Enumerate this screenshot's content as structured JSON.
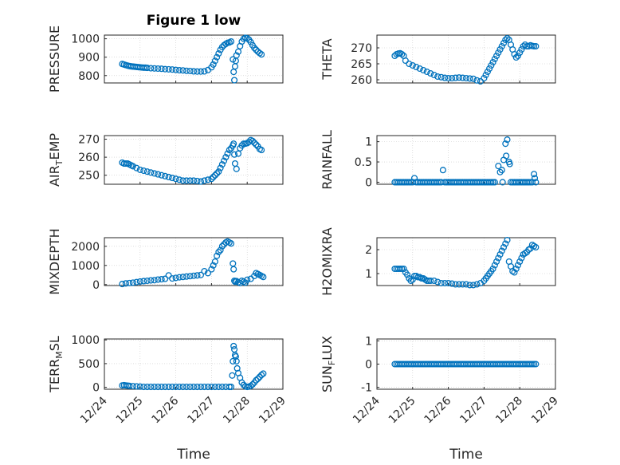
{
  "figure_title": "Figure 1 low",
  "xlabel": "Time",
  "xticks": [
    "12/24",
    "12/25",
    "12/26",
    "12/27",
    "12/28",
    "12/29"
  ],
  "marker_color": "#0072bd",
  "chart_data": [
    {
      "type": "scatter",
      "id": "pressure",
      "ylabel": "PRESSURE",
      "ylabel_sub": "",
      "title": "Figure 1 low",
      "xlim": [
        0,
        5
      ],
      "ylim": [
        760,
        1020
      ],
      "yticks": [
        800,
        900,
        1000
      ],
      "ytick_labels": [
        "800",
        "900",
        "1000"
      ],
      "x": [
        0.5,
        0.55,
        0.6,
        0.65,
        0.7,
        0.75,
        0.8,
        0.85,
        0.9,
        0.95,
        1.0,
        1.05,
        1.1,
        1.15,
        1.2,
        1.3,
        1.4,
        1.5,
        1.6,
        1.7,
        1.8,
        1.9,
        2.0,
        2.1,
        2.2,
        2.3,
        2.4,
        2.5,
        2.6,
        2.7,
        2.8,
        2.9,
        3.0,
        3.05,
        3.1,
        3.15,
        3.2,
        3.25,
        3.3,
        3.35,
        3.4,
        3.45,
        3.5,
        3.55,
        3.6,
        3.62,
        3.64,
        3.66,
        3.68,
        3.7,
        3.75,
        3.8,
        3.85,
        3.9,
        3.95,
        4.0,
        4.05,
        4.1,
        4.15,
        4.2,
        4.25,
        4.3,
        4.35,
        4.4
      ],
      "y": [
        863,
        860,
        857,
        854,
        852,
        850,
        849,
        848,
        847,
        846,
        845,
        844,
        843,
        843,
        842,
        840,
        839,
        838,
        837,
        835,
        834,
        833,
        831,
        829,
        828,
        826,
        825,
        823,
        822,
        822,
        823,
        830,
        845,
        860,
        880,
        900,
        920,
        940,
        955,
        965,
        972,
        978,
        980,
        985,
        888,
        820,
        775,
        850,
        880,
        910,
        930,
        960,
        985,
        1000,
        1005,
        1003,
        995,
        982,
        965,
        950,
        940,
        930,
        922,
        915
      ]
    },
    {
      "type": "scatter",
      "id": "theta",
      "ylabel": "THETA",
      "ylabel_sub": "",
      "xlim": [
        0,
        5
      ],
      "ylim": [
        259,
        274
      ],
      "yticks": [
        260,
        265,
        270
      ],
      "ytick_labels": [
        "260",
        "265",
        "270"
      ],
      "x": [
        0.5,
        0.55,
        0.6,
        0.65,
        0.7,
        0.75,
        0.8,
        0.9,
        1.0,
        1.1,
        1.2,
        1.3,
        1.4,
        1.5,
        1.6,
        1.7,
        1.8,
        1.9,
        2.0,
        2.1,
        2.2,
        2.3,
        2.4,
        2.5,
        2.6,
        2.7,
        2.8,
        2.9,
        3.0,
        3.05,
        3.1,
        3.15,
        3.2,
        3.25,
        3.3,
        3.35,
        3.4,
        3.45,
        3.5,
        3.55,
        3.6,
        3.65,
        3.7,
        3.75,
        3.8,
        3.85,
        3.9,
        3.95,
        4.0,
        4.05,
        4.1,
        4.15,
        4.2,
        4.25,
        4.3,
        4.35,
        4.4,
        4.45
      ],
      "y": [
        267.5,
        268,
        268.2,
        268.3,
        268,
        267.5,
        266,
        265,
        264.5,
        264,
        263.5,
        263,
        262.5,
        262,
        261.5,
        261,
        260.8,
        260.6,
        260.5,
        260.5,
        260.6,
        260.7,
        260.6,
        260.5,
        260.4,
        260.3,
        259.8,
        259.5,
        260.5,
        261.5,
        262.5,
        263.5,
        264.5,
        265.5,
        266.5,
        267.5,
        268.5,
        269.5,
        270.5,
        271.5,
        272.5,
        273,
        272.5,
        271,
        269.5,
        268,
        267,
        267.5,
        268.5,
        269.5,
        270.5,
        271,
        270.5,
        270.5,
        270.8,
        270.6,
        270.5,
        270.5
      ]
    },
    {
      "type": "scatter",
      "id": "air_temp",
      "ylabel": "AIR",
      "ylabel_sub": "T",
      "ylabel_suffix": "EMP",
      "xlim": [
        0,
        5
      ],
      "ylim": [
        245,
        272
      ],
      "yticks": [
        250,
        260,
        270
      ],
      "ytick_labels": [
        "250",
        "260",
        "270"
      ],
      "x": [
        0.5,
        0.55,
        0.6,
        0.65,
        0.7,
        0.75,
        0.8,
        0.9,
        1.0,
        1.1,
        1.2,
        1.3,
        1.4,
        1.5,
        1.6,
        1.7,
        1.8,
        1.9,
        2.0,
        2.1,
        2.2,
        2.3,
        2.4,
        2.5,
        2.6,
        2.7,
        2.8,
        2.9,
        3.0,
        3.05,
        3.1,
        3.15,
        3.2,
        3.25,
        3.3,
        3.35,
        3.4,
        3.45,
        3.5,
        3.55,
        3.6,
        3.62,
        3.64,
        3.66,
        3.7,
        3.75,
        3.8,
        3.85,
        3.9,
        3.95,
        4.0,
        4.05,
        4.1,
        4.15,
        4.2,
        4.25,
        4.3,
        4.35,
        4.4
      ],
      "y": [
        257,
        256.5,
        256.5,
        256.5,
        256,
        255.5,
        255,
        254,
        253,
        252.5,
        252,
        251.5,
        251,
        250.5,
        250,
        249.5,
        249,
        248.5,
        248,
        247.5,
        247,
        247,
        247,
        247,
        246.8,
        246.5,
        247,
        247.5,
        248,
        249,
        250,
        251,
        252,
        254,
        256,
        258,
        260,
        262,
        264,
        265,
        266.5,
        267.5,
        261.5,
        256.5,
        253.5,
        262,
        265,
        266.5,
        267.5,
        267.5,
        267.8,
        268.5,
        269.5,
        269,
        268,
        267,
        266,
        264.5,
        264
      ]
    },
    {
      "type": "scatter",
      "id": "rainfall",
      "ylabel": "RAINFALL",
      "ylabel_sub": "",
      "xlim": [
        0,
        5
      ],
      "ylim": [
        -0.05,
        1.15
      ],
      "yticks": [
        0,
        0.5,
        1
      ],
      "ytick_labels": [
        "0",
        "0.5",
        "1"
      ],
      "x": [
        0.5,
        0.55,
        0.6,
        0.65,
        0.7,
        0.75,
        0.8,
        0.85,
        0.9,
        0.95,
        1.0,
        1.05,
        1.1,
        1.15,
        1.2,
        1.25,
        1.3,
        1.35,
        1.4,
        1.45,
        1.5,
        1.55,
        1.6,
        1.65,
        1.7,
        1.75,
        1.8,
        1.85,
        1.9,
        1.95,
        2.0,
        2.05,
        2.1,
        2.15,
        2.2,
        2.25,
        2.3,
        2.35,
        2.4,
        2.45,
        2.5,
        2.55,
        2.6,
        2.65,
        2.7,
        2.75,
        2.8,
        2.85,
        2.9,
        2.95,
        3.0,
        3.05,
        3.1,
        3.15,
        3.2,
        3.25,
        3.3,
        3.4,
        3.45,
        3.5,
        3.52,
        3.55,
        3.6,
        3.62,
        3.65,
        3.7,
        3.72,
        3.75,
        3.8,
        3.85,
        3.9,
        3.95,
        4.0,
        4.05,
        4.1,
        4.15,
        4.2,
        4.25,
        4.3,
        4.35,
        4.4,
        4.42,
        4.45
      ],
      "y": [
        0,
        0,
        0,
        0,
        0,
        0,
        0,
        0,
        0,
        0,
        0,
        0.1,
        0,
        0,
        0,
        0,
        0,
        0,
        0,
        0,
        0,
        0,
        0,
        0,
        0,
        0,
        0,
        0.3,
        0,
        0,
        0,
        0,
        0,
        0,
        0,
        0,
        0,
        0,
        0,
        0,
        0,
        0,
        0,
        0,
        0,
        0,
        0,
        0,
        0,
        0,
        0,
        0,
        0,
        0,
        0,
        0,
        0,
        0.4,
        0.25,
        0.3,
        0,
        0.55,
        0.95,
        0.65,
        1.05,
        0.5,
        0.45,
        0,
        0,
        0,
        0,
        0,
        0,
        0,
        0,
        0,
        0,
        0,
        0,
        0,
        0.2,
        0.1,
        0
      ]
    },
    {
      "type": "scatter",
      "id": "mixdepth",
      "ylabel": "MIXDEPTH",
      "ylabel_sub": "",
      "xlim": [
        0,
        5
      ],
      "ylim": [
        -50,
        2450
      ],
      "yticks": [
        0,
        1000,
        2000
      ],
      "ytick_labels": [
        "0",
        "1000",
        "2000"
      ],
      "x": [
        0.5,
        0.6,
        0.7,
        0.8,
        0.9,
        1.0,
        1.1,
        1.2,
        1.3,
        1.4,
        1.5,
        1.6,
        1.7,
        1.8,
        1.9,
        2.0,
        2.1,
        2.2,
        2.3,
        2.4,
        2.5,
        2.6,
        2.7,
        2.8,
        2.9,
        3.0,
        3.05,
        3.1,
        3.15,
        3.2,
        3.25,
        3.3,
        3.35,
        3.4,
        3.45,
        3.5,
        3.55,
        3.6,
        3.62,
        3.64,
        3.66,
        3.7,
        3.75,
        3.8,
        3.85,
        3.9,
        3.95,
        4.0,
        4.1,
        4.2,
        4.25,
        4.3,
        4.35,
        4.4,
        4.45
      ],
      "y": [
        30,
        60,
        80,
        100,
        130,
        160,
        180,
        200,
        220,
        230,
        260,
        280,
        300,
        480,
        320,
        350,
        380,
        400,
        420,
        440,
        460,
        480,
        500,
        700,
        600,
        800,
        1000,
        1200,
        1500,
        1700,
        1800,
        2000,
        2100,
        2200,
        2250,
        2200,
        2150,
        1100,
        800,
        200,
        150,
        180,
        120,
        80,
        200,
        150,
        100,
        250,
        300,
        450,
        600,
        550,
        500,
        450,
        400
      ]
    },
    {
      "type": "scatter",
      "id": "h2omixra",
      "ylabel": "H2OMIXRA",
      "ylabel_sub": "",
      "xlim": [
        0,
        5
      ],
      "ylim": [
        0.5,
        2.5
      ],
      "yticks": [
        1,
        2
      ],
      "ytick_labels": [
        "1",
        "2"
      ],
      "x": [
        0.5,
        0.55,
        0.6,
        0.65,
        0.7,
        0.75,
        0.8,
        0.85,
        0.9,
        0.95,
        1.0,
        1.05,
        1.1,
        1.15,
        1.2,
        1.25,
        1.3,
        1.35,
        1.4,
        1.45,
        1.5,
        1.6,
        1.7,
        1.8,
        1.9,
        2.0,
        2.1,
        2.2,
        2.3,
        2.4,
        2.5,
        2.6,
        2.7,
        2.8,
        2.9,
        3.0,
        3.05,
        3.1,
        3.15,
        3.2,
        3.25,
        3.3,
        3.35,
        3.4,
        3.45,
        3.5,
        3.55,
        3.6,
        3.65,
        3.7,
        3.75,
        3.8,
        3.85,
        3.9,
        3.95,
        4.0,
        4.05,
        4.1,
        4.15,
        4.2,
        4.25,
        4.3,
        4.35,
        4.4,
        4.45
      ],
      "y": [
        1.2,
        1.2,
        1.2,
        1.2,
        1.2,
        1.2,
        1.05,
        0.95,
        0.8,
        0.7,
        0.75,
        0.9,
        0.9,
        0.85,
        0.85,
        0.8,
        0.8,
        0.75,
        0.7,
        0.7,
        0.7,
        0.7,
        0.65,
        0.6,
        0.6,
        0.6,
        0.58,
        0.55,
        0.55,
        0.55,
        0.55,
        0.52,
        0.52,
        0.55,
        0.6,
        0.7,
        0.8,
        0.9,
        1.0,
        1.1,
        1.2,
        1.35,
        1.5,
        1.65,
        1.8,
        1.95,
        2.1,
        2.25,
        2.4,
        1.5,
        1.3,
        1.1,
        1.05,
        1.2,
        1.35,
        1.5,
        1.65,
        1.8,
        1.85,
        1.9,
        2.0,
        2.05,
        2.2,
        2.15,
        2.1
      ]
    },
    {
      "type": "scatter",
      "id": "terr_msl",
      "ylabel": "TERR",
      "ylabel_sub": "M",
      "ylabel_suffix": "SL",
      "xlim": [
        0,
        5
      ],
      "ylim": [
        -40,
        1020
      ],
      "yticks": [
        0,
        500,
        1000
      ],
      "ytick_labels": [
        "0",
        "500",
        "1000"
      ],
      "x": [
        0.5,
        0.55,
        0.6,
        0.65,
        0.7,
        0.8,
        0.9,
        1.0,
        1.1,
        1.2,
        1.3,
        1.4,
        1.5,
        1.6,
        1.7,
        1.8,
        1.9,
        2.0,
        2.1,
        2.2,
        2.3,
        2.4,
        2.5,
        2.6,
        2.7,
        2.8,
        2.9,
        3.0,
        3.1,
        3.2,
        3.3,
        3.4,
        3.5,
        3.55,
        3.58,
        3.6,
        3.62,
        3.64,
        3.66,
        3.68,
        3.7,
        3.72,
        3.75,
        3.8,
        3.85,
        3.9,
        3.95,
        4.0,
        4.05,
        4.1,
        4.15,
        4.2,
        4.25,
        4.3,
        4.35,
        4.4,
        4.45
      ],
      "y": [
        40,
        45,
        40,
        35,
        30,
        25,
        20,
        15,
        10,
        10,
        10,
        10,
        10,
        10,
        10,
        10,
        10,
        10,
        10,
        10,
        10,
        10,
        10,
        10,
        10,
        10,
        10,
        10,
        10,
        10,
        10,
        10,
        10,
        10,
        250,
        550,
        870,
        800,
        680,
        650,
        550,
        400,
        300,
        200,
        100,
        50,
        20,
        10,
        15,
        30,
        60,
        100,
        150,
        180,
        220,
        260,
        290
      ]
    },
    {
      "type": "scatter",
      "id": "sun_flux",
      "ylabel": "SUN",
      "ylabel_sub": "F",
      "ylabel_suffix": "LUX",
      "xlim": [
        0,
        5
      ],
      "ylim": [
        -1.08,
        1.08
      ],
      "yticks": [
        -1,
        0,
        1
      ],
      "ytick_labels": [
        "-1",
        "0",
        "1"
      ],
      "x": [
        0.5,
        0.55,
        0.6,
        0.65,
        0.7,
        0.75,
        0.8,
        0.85,
        0.9,
        0.95,
        1.0,
        1.05,
        1.1,
        1.15,
        1.2,
        1.25,
        1.3,
        1.35,
        1.4,
        1.45,
        1.5,
        1.55,
        1.6,
        1.65,
        1.7,
        1.75,
        1.8,
        1.85,
        1.9,
        1.95,
        2.0,
        2.05,
        2.1,
        2.15,
        2.2,
        2.25,
        2.3,
        2.35,
        2.4,
        2.45,
        2.5,
        2.55,
        2.6,
        2.65,
        2.7,
        2.75,
        2.8,
        2.85,
        2.9,
        2.95,
        3.0,
        3.05,
        3.1,
        3.15,
        3.2,
        3.25,
        3.3,
        3.35,
        3.4,
        3.45,
        3.5,
        3.55,
        3.6,
        3.65,
        3.7,
        3.75,
        3.8,
        3.85,
        3.9,
        3.95,
        4.0,
        4.05,
        4.1,
        4.15,
        4.2,
        4.25,
        4.3,
        4.35,
        4.4,
        4.45
      ],
      "y": [
        0,
        0,
        0,
        0,
        0,
        0,
        0,
        0,
        0,
        0,
        0,
        0,
        0,
        0,
        0,
        0,
        0,
        0,
        0,
        0,
        0,
        0,
        0,
        0,
        0,
        0,
        0,
        0,
        0,
        0,
        0,
        0,
        0,
        0,
        0,
        0,
        0,
        0,
        0,
        0,
        0,
        0,
        0,
        0,
        0,
        0,
        0,
        0,
        0,
        0,
        0,
        0,
        0,
        0,
        0,
        0,
        0,
        0,
        0,
        0,
        0,
        0,
        0,
        0,
        0,
        0,
        0,
        0,
        0,
        0,
        0,
        0,
        0,
        0,
        0,
        0,
        0,
        0,
        0,
        0
      ]
    }
  ]
}
